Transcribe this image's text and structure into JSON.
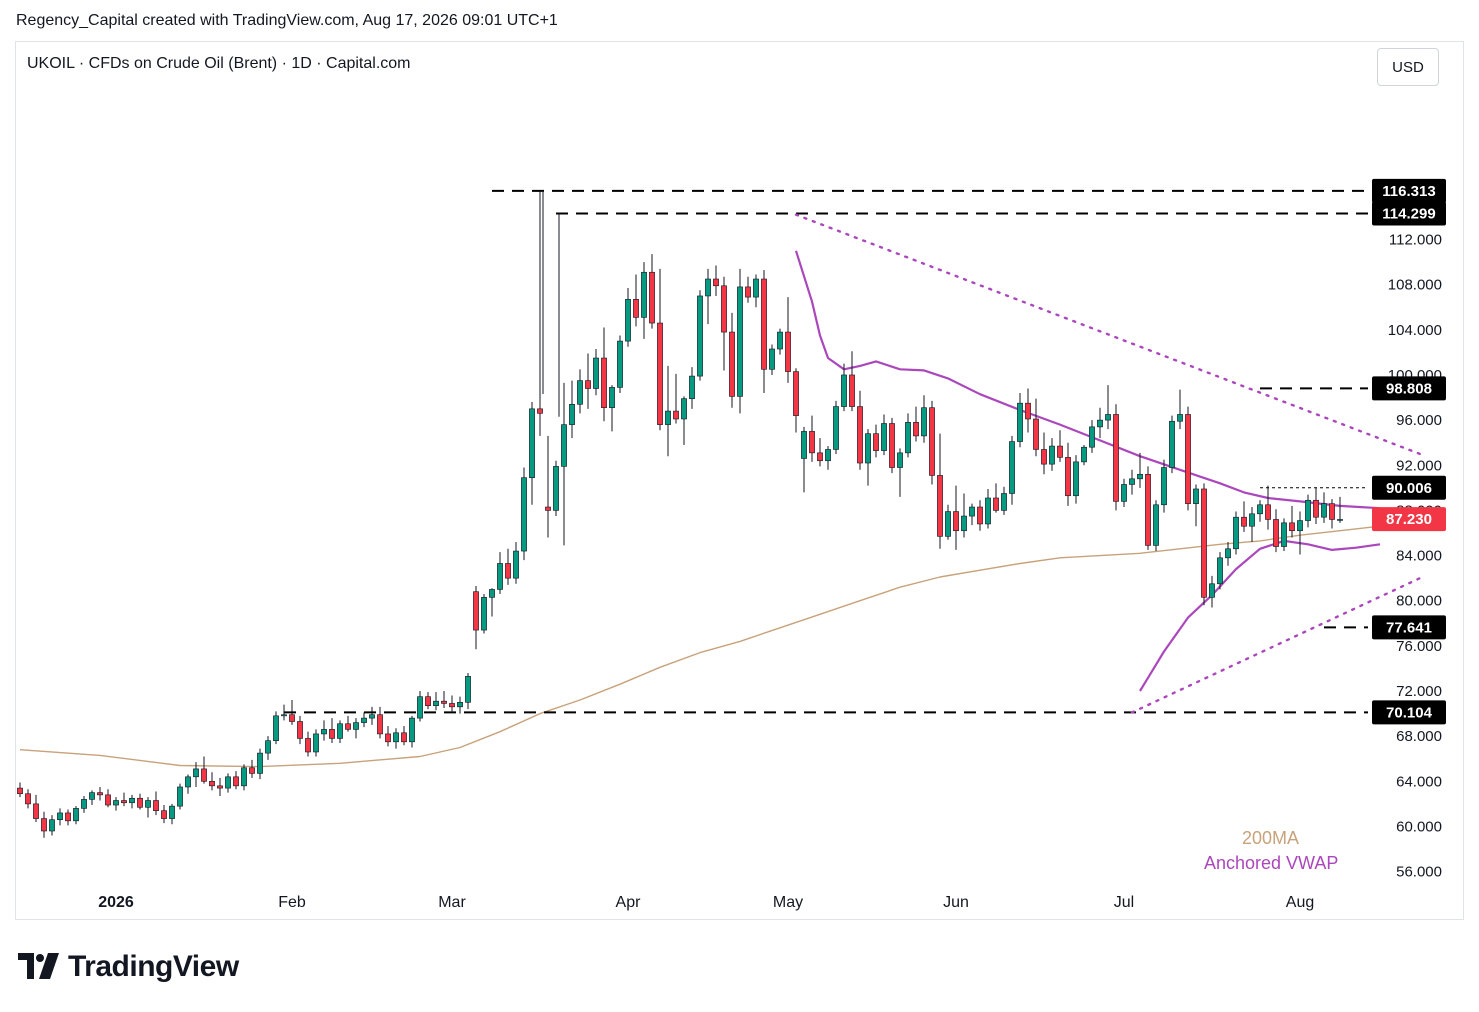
{
  "header": {
    "attribution": "Regency_Capital created with TradingView.com, Aug 17, 2026 09:01 UTC+1"
  },
  "symbol": {
    "line": "UKOIL · CFDs on Crude Oil (Brent) · 1D · Capital.com"
  },
  "currency_button": "USD",
  "footer": {
    "brand": "TradingView"
  },
  "colors": {
    "up": "#089981",
    "down": "#f23645",
    "ma200": "#c8a27a",
    "vwap": "#ab47bc",
    "level_line": "#000000",
    "current_price": "#f23645"
  },
  "chart_data": {
    "type": "candlestick",
    "symbol": "UKOIL",
    "interval": "1D",
    "y_axis": {
      "range": [
        52.6,
        125.6
      ],
      "ticks": [
        "56.000",
        "60.000",
        "64.000",
        "68.000",
        "72.000",
        "76.000",
        "80.000",
        "84.000",
        "88.000",
        "92.000",
        "96.000",
        "100.000",
        "104.000",
        "108.000",
        "112.000"
      ]
    },
    "x_axis": {
      "labels": [
        {
          "label": "2026",
          "bar": 12
        },
        {
          "label": "Feb",
          "bar": 34
        },
        {
          "label": "Mar",
          "bar": 54
        },
        {
          "label": "Apr",
          "bar": 76
        },
        {
          "label": "May",
          "bar": 96
        },
        {
          "label": "Jun",
          "bar": 117
        },
        {
          "label": "Jul",
          "bar": 138
        },
        {
          "label": "Aug",
          "bar": 160
        }
      ]
    },
    "price_levels": [
      {
        "label": "116.313",
        "value": 116.313,
        "start_bar": 59,
        "style": "dashed"
      },
      {
        "label": "114.299",
        "value": 114.299,
        "start_bar": 67,
        "style": "dashed"
      },
      {
        "label": "98.808",
        "value": 98.808,
        "start_bar": 155,
        "style": "dashed"
      },
      {
        "label": "90.006",
        "value": 90.006,
        "start_bar": 155,
        "style": "dotted"
      },
      {
        "label": "87.230",
        "value": 87.23,
        "current": true
      },
      {
        "label": "77.641",
        "value": 77.641,
        "start_bar": 163,
        "style": "dashed"
      },
      {
        "label": "70.104",
        "value": 70.104,
        "start_bar": 33,
        "style": "dashed"
      }
    ],
    "trendlines": [
      {
        "from": {
          "bar": 97,
          "value": 114.2
        },
        "to": {
          "bar": 175,
          "value": 93.0
        },
        "style": "dotted"
      },
      {
        "from": {
          "bar": 139,
          "value": 70.1
        },
        "to": {
          "bar": 175,
          "value": 82.0
        },
        "style": "dotted"
      }
    ],
    "legend": [
      {
        "label": "200MA",
        "color": "#c8a27a"
      },
      {
        "label": "Anchored VWAP",
        "color": "#ab47bc"
      }
    ],
    "ma200": [
      [
        0,
        66.8
      ],
      [
        10,
        66.3
      ],
      [
        20,
        65.4
      ],
      [
        30,
        65.3
      ],
      [
        40,
        65.6
      ],
      [
        50,
        66.2
      ],
      [
        55,
        67.0
      ],
      [
        60,
        68.4
      ],
      [
        65,
        70.0
      ],
      [
        70,
        71.2
      ],
      [
        75,
        72.6
      ],
      [
        80,
        74.1
      ],
      [
        85,
        75.4
      ],
      [
        90,
        76.4
      ],
      [
        95,
        77.6
      ],
      [
        100,
        78.8
      ],
      [
        105,
        80.0
      ],
      [
        110,
        81.2
      ],
      [
        115,
        82.1
      ],
      [
        120,
        82.7
      ],
      [
        125,
        83.3
      ],
      [
        130,
        83.8
      ],
      [
        135,
        84.0
      ],
      [
        140,
        84.2
      ],
      [
        145,
        84.6
      ],
      [
        150,
        85.0
      ],
      [
        155,
        85.3
      ],
      [
        160,
        85.8
      ],
      [
        165,
        86.2
      ],
      [
        170,
        86.6
      ]
    ],
    "vwap_may": [
      [
        97,
        111.0
      ],
      [
        99,
        106.5
      ],
      [
        100,
        103.5
      ],
      [
        101,
        101.5
      ],
      [
        103,
        100.5
      ],
      [
        105,
        100.8
      ],
      [
        107,
        101.2
      ],
      [
        110,
        100.5
      ],
      [
        113,
        100.4
      ],
      [
        116,
        99.7
      ],
      [
        120,
        98.3
      ],
      [
        125,
        96.9
      ],
      [
        130,
        95.6
      ],
      [
        135,
        94.2
      ],
      [
        140,
        92.8
      ],
      [
        145,
        91.6
      ],
      [
        150,
        90.4
      ],
      [
        153,
        89.6
      ],
      [
        156,
        89.1
      ],
      [
        160,
        88.8
      ],
      [
        165,
        88.4
      ],
      [
        170,
        88.2
      ]
    ],
    "vwap_jul": [
      [
        140,
        72.0
      ],
      [
        143,
        75.5
      ],
      [
        146,
        78.5
      ],
      [
        149,
        80.5
      ],
      [
        152,
        82.8
      ],
      [
        155,
        84.6
      ],
      [
        158,
        85.3
      ],
      [
        161,
        85.0
      ],
      [
        164,
        84.5
      ],
      [
        167,
        84.7
      ],
      [
        170,
        85.0
      ]
    ],
    "candles": [
      [
        0,
        63.4,
        63.9,
        62.6,
        62.9
      ],
      [
        1,
        62.9,
        63.3,
        61.6,
        62.0
      ],
      [
        2,
        62.0,
        62.8,
        60.4,
        60.7
      ],
      [
        3,
        60.7,
        61.3,
        59.0,
        59.6
      ],
      [
        4,
        59.6,
        61.0,
        59.2,
        60.6
      ],
      [
        5,
        60.6,
        61.6,
        60.1,
        61.2
      ],
      [
        6,
        61.2,
        61.5,
        60.1,
        60.5
      ],
      [
        7,
        60.5,
        61.8,
        60.2,
        61.6
      ],
      [
        8,
        61.6,
        62.7,
        61.2,
        62.4
      ],
      [
        9,
        62.4,
        63.2,
        61.9,
        63.0
      ],
      [
        10,
        63.0,
        63.5,
        62.3,
        62.8
      ],
      [
        11,
        62.8,
        63.3,
        61.7,
        61.9
      ],
      [
        12,
        61.9,
        62.6,
        61.4,
        62.3
      ],
      [
        13,
        62.3,
        63.0,
        61.8,
        62.1
      ],
      [
        14,
        62.1,
        62.8,
        61.6,
        62.5
      ],
      [
        15,
        62.5,
        62.9,
        61.5,
        61.7
      ],
      [
        16,
        61.7,
        62.6,
        60.8,
        62.3
      ],
      [
        17,
        62.3,
        63.1,
        61.0,
        61.4
      ],
      [
        18,
        61.4,
        61.9,
        60.3,
        60.7
      ],
      [
        19,
        60.7,
        62.0,
        60.2,
        61.8
      ],
      [
        20,
        61.8,
        63.8,
        61.5,
        63.5
      ],
      [
        21,
        63.5,
        64.6,
        62.9,
        64.4
      ],
      [
        22,
        64.4,
        65.7,
        63.5,
        65.1
      ],
      [
        23,
        65.1,
        66.2,
        63.8,
        64.0
      ],
      [
        24,
        64.0,
        64.8,
        63.2,
        63.6
      ],
      [
        25,
        63.6,
        64.3,
        62.7,
        63.4
      ],
      [
        26,
        63.4,
        64.7,
        63.0,
        64.4
      ],
      [
        27,
        64.4,
        64.9,
        63.3,
        63.6
      ],
      [
        28,
        63.6,
        65.5,
        63.2,
        65.2
      ],
      [
        29,
        65.2,
        65.9,
        64.3,
        64.7
      ],
      [
        30,
        64.7,
        66.9,
        64.2,
        66.5
      ],
      [
        31,
        66.5,
        68.0,
        65.9,
        67.6
      ],
      [
        32,
        67.6,
        70.2,
        67.3,
        69.8
      ],
      [
        33,
        69.8,
        70.8,
        69.4,
        69.9
      ],
      [
        34,
        69.9,
        71.2,
        69.0,
        69.3
      ],
      [
        35,
        69.3,
        69.8,
        67.3,
        67.8
      ],
      [
        36,
        67.8,
        68.4,
        66.2,
        66.6
      ],
      [
        37,
        66.6,
        68.6,
        66.2,
        68.2
      ],
      [
        38,
        68.2,
        69.4,
        67.6,
        68.6
      ],
      [
        39,
        68.6,
        69.6,
        67.4,
        67.8
      ],
      [
        40,
        67.8,
        69.4,
        67.4,
        69.1
      ],
      [
        41,
        69.1,
        69.8,
        68.4,
        68.6
      ],
      [
        42,
        68.6,
        69.6,
        67.8,
        69.2
      ],
      [
        43,
        69.2,
        70.1,
        68.8,
        69.6
      ],
      [
        44,
        69.6,
        70.6,
        69.0,
        69.9
      ],
      [
        45,
        69.9,
        70.6,
        67.8,
        68.2
      ],
      [
        46,
        68.2,
        68.9,
        67.1,
        67.5
      ],
      [
        47,
        67.5,
        68.7,
        66.9,
        68.3
      ],
      [
        48,
        68.3,
        68.9,
        67.2,
        67.5
      ],
      [
        49,
        67.5,
        69.8,
        67.0,
        69.6
      ],
      [
        50,
        69.6,
        72.0,
        69.3,
        71.5
      ],
      [
        51,
        71.5,
        71.9,
        70.4,
        70.7
      ],
      [
        52,
        70.7,
        71.9,
        70.3,
        71.1
      ],
      [
        53,
        71.1,
        72.0,
        70.5,
        70.9
      ],
      [
        54,
        70.9,
        71.6,
        70.2,
        70.6
      ],
      [
        55,
        70.6,
        71.5,
        70.0,
        71.0
      ],
      [
        56,
        71.0,
        73.6,
        70.4,
        73.3
      ],
      [
        57,
        80.8,
        81.3,
        75.7,
        77.4
      ],
      [
        58,
        77.4,
        80.6,
        77.1,
        80.3
      ],
      [
        59,
        80.3,
        81.1,
        78.6,
        81.0
      ],
      [
        60,
        81.0,
        84.3,
        80.6,
        83.3
      ],
      [
        61,
        83.3,
        84.6,
        81.4,
        82.0
      ],
      [
        62,
        82.0,
        85.2,
        81.5,
        84.4
      ],
      [
        63,
        84.4,
        91.8,
        83.6,
        90.9
      ],
      [
        64,
        90.9,
        97.6,
        88.5,
        97.0
      ],
      [
        65,
        97.0,
        116.3,
        94.6,
        96.6
      ],
      [
        66,
        88.3,
        94.6,
        85.6,
        88.0
      ],
      [
        67,
        88.0,
        92.4,
        87.5,
        91.9
      ],
      [
        68,
        91.9,
        99.3,
        84.9,
        95.6
      ],
      [
        69,
        95.6,
        99.5,
        94.4,
        97.4
      ],
      [
        70,
        97.4,
        100.5,
        96.6,
        99.5
      ],
      [
        71,
        99.5,
        101.9,
        97.0,
        98.8
      ],
      [
        72,
        98.8,
        102.3,
        98.2,
        101.5
      ],
      [
        73,
        101.5,
        104.2,
        95.9,
        97.1
      ],
      [
        74,
        97.1,
        99.1,
        95.0,
        98.9
      ],
      [
        75,
        98.9,
        103.5,
        98.4,
        103.0
      ],
      [
        76,
        103.0,
        107.7,
        102.5,
        106.7
      ],
      [
        77,
        106.7,
        108.9,
        104.3,
        105.1
      ],
      [
        78,
        105.1,
        110.0,
        103.2,
        109.1
      ],
      [
        79,
        109.1,
        110.7,
        104.1,
        104.6
      ],
      [
        80,
        104.6,
        109.4,
        95.1,
        95.6
      ],
      [
        81,
        95.6,
        100.8,
        92.8,
        96.8
      ],
      [
        82,
        96.8,
        100.1,
        95.7,
        96.1
      ],
      [
        83,
        96.1,
        98.1,
        93.8,
        97.9
      ],
      [
        84,
        97.9,
        100.7,
        97.0,
        99.9
      ],
      [
        85,
        99.9,
        107.5,
        99.5,
        107.0
      ],
      [
        86,
        107.0,
        109.4,
        104.5,
        108.5
      ],
      [
        87,
        108.5,
        109.7,
        107.0,
        107.9
      ],
      [
        88,
        107.9,
        108.7,
        100.4,
        103.8
      ],
      [
        89,
        103.8,
        105.5,
        97.1,
        98.1
      ],
      [
        90,
        98.1,
        109.4,
        96.6,
        107.8
      ],
      [
        91,
        107.8,
        108.7,
        106.4,
        106.9
      ],
      [
        92,
        106.9,
        108.9,
        106.0,
        108.5
      ],
      [
        93,
        108.5,
        109.3,
        98.4,
        100.5
      ],
      [
        94,
        100.5,
        102.7,
        100.0,
        102.3
      ],
      [
        95,
        102.3,
        104.1,
        101.8,
        103.8
      ],
      [
        96,
        103.8,
        106.9,
        99.3,
        100.3
      ],
      [
        97,
        100.3,
        100.6,
        94.9,
        96.4
      ],
      [
        98,
        92.6,
        95.4,
        89.6,
        95.0
      ],
      [
        99,
        95.0,
        96.4,
        92.3,
        93.1
      ],
      [
        100,
        93.1,
        94.4,
        91.9,
        92.4
      ],
      [
        101,
        92.4,
        93.7,
        91.6,
        93.4
      ],
      [
        102,
        93.4,
        97.7,
        93.0,
        97.2
      ],
      [
        103,
        97.2,
        101.0,
        96.8,
        100.0
      ],
      [
        104,
        100.0,
        102.1,
        96.8,
        97.2
      ],
      [
        105,
        97.2,
        98.6,
        91.6,
        92.2
      ],
      [
        106,
        92.2,
        95.2,
        90.2,
        94.8
      ],
      [
        107,
        94.8,
        95.6,
        92.7,
        93.3
      ],
      [
        108,
        93.3,
        96.5,
        92.9,
        95.7
      ],
      [
        109,
        95.7,
        96.2,
        91.3,
        91.8
      ],
      [
        110,
        91.8,
        93.5,
        89.2,
        93.1
      ],
      [
        111,
        93.1,
        96.6,
        92.7,
        95.8
      ],
      [
        112,
        95.8,
        97.2,
        94.1,
        94.6
      ],
      [
        113,
        94.6,
        98.2,
        94.0,
        97.1
      ],
      [
        114,
        97.1,
        97.7,
        90.3,
        91.1
      ],
      [
        115,
        91.1,
        94.8,
        84.6,
        85.7
      ],
      [
        116,
        85.7,
        88.5,
        85.4,
        87.9
      ],
      [
        117,
        87.9,
        90.2,
        84.5,
        86.2
      ],
      [
        118,
        86.2,
        89.5,
        85.6,
        87.5
      ],
      [
        119,
        87.5,
        88.6,
        86.7,
        88.3
      ],
      [
        120,
        88.3,
        88.9,
        86.2,
        86.8
      ],
      [
        121,
        86.8,
        89.9,
        86.4,
        89.1
      ],
      [
        122,
        89.1,
        90.4,
        87.8,
        88.0
      ],
      [
        123,
        88.0,
        90.1,
        87.6,
        89.5
      ],
      [
        124,
        89.5,
        94.6,
        88.5,
        94.1
      ],
      [
        125,
        94.1,
        98.4,
        93.6,
        97.5
      ],
      [
        126,
        97.5,
        98.8,
        94.9,
        96.1
      ],
      [
        127,
        96.1,
        97.9,
        92.8,
        93.4
      ],
      [
        128,
        93.4,
        94.9,
        91.2,
        92.1
      ],
      [
        129,
        92.1,
        94.4,
        91.5,
        93.7
      ],
      [
        130,
        93.7,
        95.1,
        92.3,
        92.7
      ],
      [
        131,
        92.7,
        94.0,
        88.4,
        89.3
      ],
      [
        132,
        89.3,
        92.9,
        88.6,
        92.3
      ],
      [
        133,
        92.3,
        93.8,
        92.0,
        93.6
      ],
      [
        134,
        93.6,
        96.0,
        93.1,
        95.4
      ],
      [
        135,
        95.4,
        97.1,
        94.4,
        96.0
      ],
      [
        136,
        96.0,
        99.1,
        95.2,
        96.5
      ],
      [
        137,
        96.5,
        97.4,
        88.0,
        88.8
      ],
      [
        138,
        88.8,
        90.8,
        88.3,
        90.3
      ],
      [
        139,
        90.3,
        91.6,
        89.4,
        90.8
      ],
      [
        140,
        90.8,
        93.1,
        90.0,
        91.2
      ],
      [
        141,
        91.2,
        91.9,
        84.5,
        84.9
      ],
      [
        142,
        84.9,
        88.9,
        84.4,
        88.5
      ],
      [
        143,
        88.5,
        92.5,
        87.8,
        91.8
      ],
      [
        144,
        91.8,
        96.4,
        91.3,
        95.9
      ],
      [
        145,
        95.9,
        98.7,
        95.2,
        96.5
      ],
      [
        146,
        96.5,
        97.2,
        88.0,
        88.6
      ],
      [
        147,
        88.6,
        90.3,
        86.6,
        89.9
      ],
      [
        148,
        89.9,
        90.4,
        79.6,
        80.3
      ],
      [
        149,
        80.3,
        82.2,
        79.4,
        81.5
      ],
      [
        150,
        81.5,
        84.3,
        81.0,
        83.8
      ],
      [
        151,
        83.8,
        85.2,
        83.1,
        84.6
      ],
      [
        152,
        84.6,
        87.9,
        84.1,
        87.4
      ],
      [
        153,
        87.4,
        88.8,
        86.1,
        86.6
      ],
      [
        154,
        86.6,
        88.3,
        85.2,
        87.7
      ],
      [
        155,
        87.7,
        88.9,
        87.0,
        88.5
      ],
      [
        156,
        88.5,
        90.2,
        86.3,
        87.2
      ],
      [
        157,
        87.2,
        88.1,
        84.3,
        84.8
      ],
      [
        158,
        84.8,
        87.3,
        84.4,
        86.9
      ],
      [
        159,
        86.9,
        88.4,
        85.6,
        86.2
      ],
      [
        160,
        86.2,
        87.9,
        84.1,
        87.1
      ],
      [
        161,
        87.1,
        89.4,
        86.5,
        88.9
      ],
      [
        162,
        88.9,
        90.0,
        86.8,
        87.4
      ],
      [
        163,
        87.4,
        89.6,
        86.9,
        88.6
      ],
      [
        164,
        88.6,
        89.0,
        86.4,
        87.2
      ],
      [
        165,
        87.2,
        89.2,
        86.9,
        87.2
      ]
    ]
  }
}
